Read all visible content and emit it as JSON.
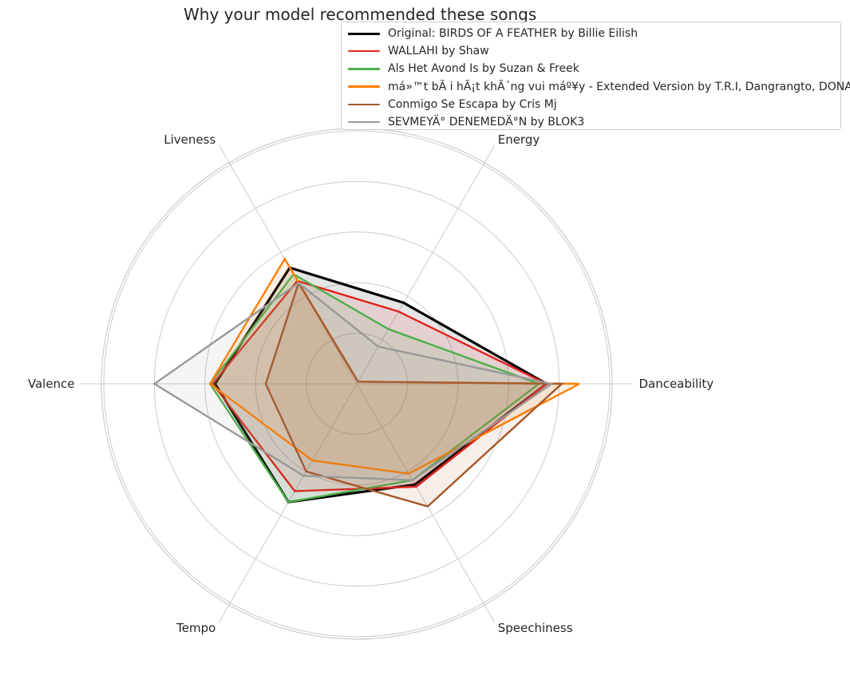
{
  "chart_data": {
    "type": "radar",
    "title": "Why your model recommended these songs",
    "axes": [
      "Danceability",
      "Energy",
      "Liveness",
      "Valence",
      "Tempo",
      "Speechiness"
    ],
    "rlim": [
      0,
      1
    ],
    "grid": true,
    "legend_position": "top-right",
    "series": [
      {
        "name": "Original: BIRDS OF A FEATHER by Billie Eilish",
        "color": "#000000",
        "linewidth": 3.2,
        "values": [
          0.75,
          0.37,
          0.53,
          0.56,
          0.54,
          0.46
        ]
      },
      {
        "name": "WALLAHI by Shaw",
        "color": "#e3211c",
        "linewidth": 2.4,
        "values": [
          0.75,
          0.33,
          0.47,
          0.57,
          0.49,
          0.47
        ]
      },
      {
        "name": "Als Het Avond Is by Suzan & Freek",
        "color": "#4daf4a",
        "linewidth": 2.4,
        "values": [
          0.72,
          0.25,
          0.5,
          0.58,
          0.54,
          0.44
        ]
      },
      {
        "name": "má»™t bÃ i hÃ¡t khÃ´ng vui máº¥y - Extended Version by T.R.I, Dangrangto, DONAL",
        "color": "#ff7f00",
        "linewidth": 2.4,
        "values": [
          0.88,
          0.01,
          0.57,
          0.58,
          0.35,
          0.41
        ]
      },
      {
        "name": "Conmigo Se Escapa by Cris Mj",
        "color": "#a65628",
        "linewidth": 2.4,
        "values": [
          0.81,
          0.01,
          0.46,
          0.36,
          0.4,
          0.56
        ]
      },
      {
        "name": "SEVMEYÄ° DENEMEDÄ°N by BLOK3",
        "color": "#999999",
        "linewidth": 2.4,
        "values": [
          0.77,
          0.17,
          0.46,
          0.8,
          0.42,
          0.44
        ]
      }
    ]
  }
}
